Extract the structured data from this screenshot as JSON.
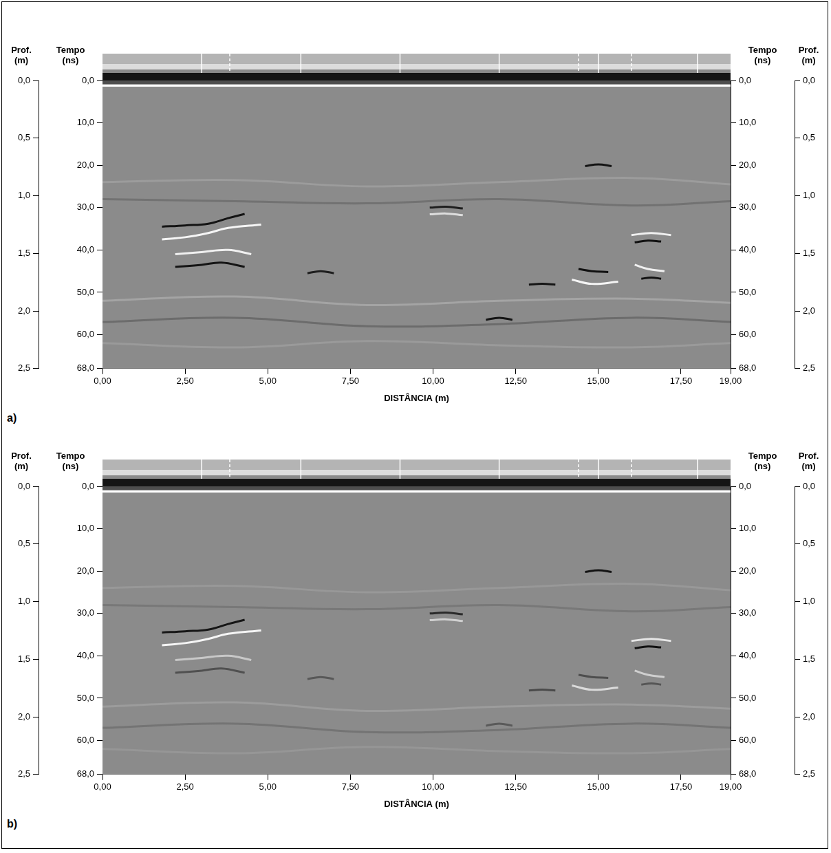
{
  "chart_data": [
    {
      "type": "line",
      "panel_label": "a)",
      "xlabel": "DISTÂNCIA (m)",
      "ylabel": "Tempo (ns)",
      "y2label": "Prof. (m)",
      "grid": false,
      "xlim": [
        0,
        19
      ],
      "xticks": [
        {
          "value": 0,
          "label": "0,00"
        },
        {
          "value": 2.5,
          "label": "2,50"
        },
        {
          "value": 5,
          "label": "5,00"
        },
        {
          "value": 7.5,
          "label": "7,50"
        },
        {
          "value": 10,
          "label": "10,00"
        },
        {
          "value": 12.5,
          "label": "12,50"
        },
        {
          "value": 15,
          "label": "15,00"
        },
        {
          "value": 17.5,
          "label": "17,50"
        },
        {
          "value": 19,
          "label": "19,00"
        }
      ],
      "ylim": [
        68,
        0
      ],
      "yticks": [
        {
          "value": 0,
          "label": "0,0"
        },
        {
          "value": 10,
          "label": "10,0"
        },
        {
          "value": 20,
          "label": "20,0"
        },
        {
          "value": 30,
          "label": "30,0"
        },
        {
          "value": 40,
          "label": "40,0"
        },
        {
          "value": 50,
          "label": "50,0"
        },
        {
          "value": 60,
          "label": "60,0"
        },
        {
          "value": 68,
          "label": "68,0"
        }
      ],
      "y2lim": [
        2.5,
        0
      ],
      "y2ticks": [
        {
          "value": 0,
          "label": "0,0"
        },
        {
          "value": 0.5,
          "label": "0,5"
        },
        {
          "value": 1,
          "label": "1,0"
        },
        {
          "value": 1.5,
          "label": "1,5"
        },
        {
          "value": 2,
          "label": "2,0"
        },
        {
          "value": 2.5,
          "label": "2,5"
        }
      ],
      "trace_marks": [
        3,
        6,
        9,
        12,
        15,
        18
      ],
      "trace_marks_dashed": [
        3.85,
        14.4,
        16.0
      ],
      "series": [
        {
          "color": "#9c9c9c",
          "x": [
            0,
            4,
            8,
            12,
            16,
            19
          ],
          "values": [
            24,
            23.5,
            25,
            24,
            23,
            24.5
          ]
        },
        {
          "color": "#727272",
          "x": [
            0,
            4,
            8,
            12,
            16,
            19
          ],
          "values": [
            28,
            28.5,
            29,
            28,
            29.5,
            28.5
          ]
        },
        {
          "color": "#a4a4a4",
          "x": [
            0,
            4,
            8,
            12,
            16,
            19
          ],
          "values": [
            52,
            51,
            53,
            52,
            51.5,
            52.5
          ]
        },
        {
          "color": "#6c6c6c",
          "x": [
            0,
            4,
            8,
            12,
            16,
            19
          ],
          "values": [
            57,
            56,
            58,
            57.5,
            56,
            57
          ]
        },
        {
          "color": "#9a9a9a",
          "x": [
            0,
            4,
            8,
            12,
            16,
            19
          ],
          "values": [
            62,
            63,
            61.5,
            62.5,
            63,
            62
          ]
        },
        {
          "color": "#141414",
          "x": [
            1.8,
            2.5,
            3.2,
            3.8,
            4.3
          ],
          "values": [
            34.5,
            34.2,
            33.8,
            32.5,
            31.5
          ]
        },
        {
          "color": "#f5f5f5",
          "x": [
            1.8,
            2.5,
            3.2,
            3.8,
            4.8
          ],
          "values": [
            37.5,
            37,
            36,
            34.8,
            34
          ]
        },
        {
          "color": "#f0f0f0",
          "x": [
            2.2,
            3.0,
            3.8,
            4.5
          ],
          "values": [
            41,
            40.5,
            40,
            41
          ]
        },
        {
          "color": "#141414",
          "x": [
            2.2,
            3.0,
            3.6,
            4.3
          ],
          "values": [
            44,
            43.5,
            43,
            44
          ]
        },
        {
          "color": "#141414",
          "x": [
            14.6,
            15.0,
            15.4
          ],
          "values": [
            20.2,
            19.8,
            20.2
          ]
        },
        {
          "color": "#1e1e1e",
          "x": [
            9.9,
            10.4,
            10.9
          ],
          "values": [
            30,
            29.8,
            30.2
          ]
        },
        {
          "color": "#dddddd",
          "x": [
            9.9,
            10.4,
            10.9
          ],
          "values": [
            31.6,
            31.4,
            31.8
          ]
        },
        {
          "color": "#1e1e1e",
          "x": [
            6.2,
            6.6,
            7.0
          ],
          "values": [
            45.5,
            45,
            45.5
          ]
        },
        {
          "color": "#141414",
          "x": [
            12.9,
            13.3,
            13.7
          ],
          "values": [
            48.2,
            48,
            48.2
          ]
        },
        {
          "color": "#141414",
          "x": [
            11.6,
            12.0,
            12.4
          ],
          "values": [
            56.5,
            56,
            56.5
          ]
        },
        {
          "color": "#f0f0f0",
          "x": [
            16.0,
            16.6,
            17.2
          ],
          "values": [
            36.5,
            36,
            36.5
          ]
        },
        {
          "color": "#111111",
          "x": [
            16.1,
            16.5,
            16.9
          ],
          "values": [
            38.2,
            37.8,
            38
          ]
        },
        {
          "color": "#f0f0f0",
          "x": [
            16.1,
            16.5,
            17.0
          ],
          "values": [
            43.5,
            44.5,
            45
          ]
        },
        {
          "color": "#111111",
          "x": [
            16.3,
            16.6,
            16.9
          ],
          "values": [
            46.8,
            46.5,
            46.8
          ]
        },
        {
          "color": "#111111",
          "x": [
            14.4,
            14.8,
            15.3
          ],
          "values": [
            44.5,
            45,
            45.2
          ]
        },
        {
          "color": "#f5f5f5",
          "x": [
            14.2,
            14.8,
            15.6
          ],
          "values": [
            47,
            48,
            47.5
          ]
        }
      ]
    },
    {
      "type": "line",
      "panel_label": "b)",
      "xlabel": "DISTÂNCIA (m)",
      "ylabel": "Tempo (ns)",
      "y2label": "Prof. (m)",
      "grid": false,
      "xlim": [
        0,
        19
      ],
      "xticks": [
        {
          "value": 0,
          "label": "0,00"
        },
        {
          "value": 2.5,
          "label": "2,50"
        },
        {
          "value": 5,
          "label": "5,00"
        },
        {
          "value": 7.5,
          "label": "7,50"
        },
        {
          "value": 10,
          "label": "10,00"
        },
        {
          "value": 12.5,
          "label": "12,50"
        },
        {
          "value": 15,
          "label": "15,00"
        },
        {
          "value": 17.5,
          "label": "17,50"
        },
        {
          "value": 19,
          "label": "19,00"
        }
      ],
      "ylim": [
        68,
        0
      ],
      "yticks": [
        {
          "value": 0,
          "label": "0,0"
        },
        {
          "value": 10,
          "label": "10,0"
        },
        {
          "value": 20,
          "label": "20,0"
        },
        {
          "value": 30,
          "label": "30,0"
        },
        {
          "value": 40,
          "label": "40,0"
        },
        {
          "value": 50,
          "label": "50,0"
        },
        {
          "value": 60,
          "label": "60,0"
        },
        {
          "value": 68,
          "label": "68,0"
        }
      ],
      "y2lim": [
        2.5,
        0
      ],
      "y2ticks": [
        {
          "value": 0,
          "label": "0,0"
        },
        {
          "value": 0.5,
          "label": "0,5"
        },
        {
          "value": 1,
          "label": "1,0"
        },
        {
          "value": 1.5,
          "label": "1,5"
        },
        {
          "value": 2,
          "label": "2,0"
        },
        {
          "value": 2.5,
          "label": "2,5"
        }
      ],
      "trace_marks": [
        3,
        6,
        9,
        12,
        15,
        18
      ],
      "trace_marks_dashed": [
        3.85,
        14.4,
        16.0
      ],
      "series": [
        {
          "color": "#989898",
          "x": [
            0,
            4,
            8,
            12,
            16,
            19
          ],
          "values": [
            24,
            23.5,
            25,
            24,
            23,
            24.5
          ]
        },
        {
          "color": "#787878",
          "x": [
            0,
            4,
            8,
            12,
            16,
            19
          ],
          "values": [
            28,
            28.5,
            29,
            28,
            29.5,
            28.5
          ]
        },
        {
          "color": "#9c9c9c",
          "x": [
            0,
            4,
            8,
            12,
            16,
            19
          ],
          "values": [
            52,
            51,
            53,
            52,
            51.5,
            52.5
          ]
        },
        {
          "color": "#747474",
          "x": [
            0,
            4,
            8,
            12,
            16,
            19
          ],
          "values": [
            57,
            56,
            58,
            57.5,
            56,
            57
          ]
        },
        {
          "color": "#969696",
          "x": [
            0,
            4,
            8,
            12,
            16,
            19
          ],
          "values": [
            62,
            63,
            61.5,
            62.5,
            63,
            62
          ]
        },
        {
          "color": "#161616",
          "x": [
            1.8,
            2.5,
            3.2,
            3.8,
            4.3
          ],
          "values": [
            34.5,
            34.2,
            33.8,
            32.5,
            31.5
          ]
        },
        {
          "color": "#f5f5f5",
          "x": [
            1.8,
            2.5,
            3.2,
            3.8,
            4.8
          ],
          "values": [
            37.5,
            37,
            36,
            34.8,
            34
          ]
        },
        {
          "color": "#c8c8c8",
          "x": [
            2.2,
            3.0,
            3.8,
            4.5
          ],
          "values": [
            41,
            40.5,
            40,
            41
          ]
        },
        {
          "color": "#505050",
          "x": [
            2.2,
            3.0,
            3.6,
            4.3
          ],
          "values": [
            44,
            43.5,
            43,
            44
          ]
        },
        {
          "color": "#141414",
          "x": [
            14.6,
            15.0,
            15.4
          ],
          "values": [
            20.2,
            19.8,
            20.2
          ]
        },
        {
          "color": "#2a2a2a",
          "x": [
            9.9,
            10.4,
            10.9
          ],
          "values": [
            30,
            29.8,
            30.2
          ]
        },
        {
          "color": "#d0d0d0",
          "x": [
            9.9,
            10.4,
            10.9
          ],
          "values": [
            31.6,
            31.4,
            31.8
          ]
        },
        {
          "color": "#585858",
          "x": [
            6.2,
            6.6,
            7.0
          ],
          "values": [
            45.5,
            45,
            45.5
          ]
        },
        {
          "color": "#4a4a4a",
          "x": [
            12.9,
            13.3,
            13.7
          ],
          "values": [
            48.2,
            48,
            48.2
          ]
        },
        {
          "color": "#5a5a5a",
          "x": [
            11.6,
            12.0,
            12.4
          ],
          "values": [
            56.5,
            56,
            56.5
          ]
        },
        {
          "color": "#e6e6e6",
          "x": [
            16.0,
            16.6,
            17.2
          ],
          "values": [
            36.5,
            36,
            36.5
          ]
        },
        {
          "color": "#111111",
          "x": [
            16.1,
            16.5,
            16.9
          ],
          "values": [
            38.2,
            37.8,
            38
          ]
        },
        {
          "color": "#cfcfcf",
          "x": [
            16.1,
            16.5,
            17.0
          ],
          "values": [
            43.5,
            44.5,
            45
          ]
        },
        {
          "color": "#555555",
          "x": [
            16.3,
            16.6,
            16.9
          ],
          "values": [
            46.8,
            46.5,
            46.8
          ]
        },
        {
          "color": "#4e4e4e",
          "x": [
            14.4,
            14.8,
            15.3
          ],
          "values": [
            44.5,
            45,
            45.2
          ]
        },
        {
          "color": "#dadada",
          "x": [
            14.2,
            14.8,
            15.6
          ],
          "values": [
            47,
            48,
            47.5
          ]
        }
      ]
    }
  ]
}
